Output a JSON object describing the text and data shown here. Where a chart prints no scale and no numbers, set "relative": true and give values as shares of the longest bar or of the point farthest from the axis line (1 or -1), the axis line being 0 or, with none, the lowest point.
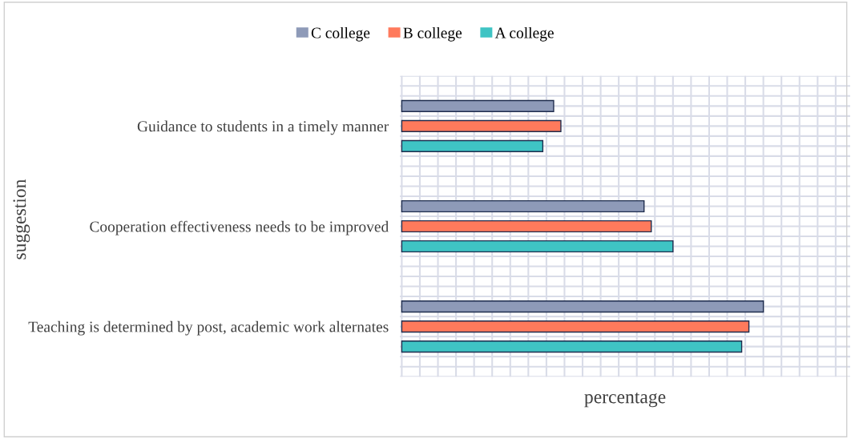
{
  "chart_data": {
    "type": "bar",
    "orientation": "horizontal",
    "relative": true,
    "xlabel": "percentage",
    "ylabel": "suggestion",
    "categories": [
      "Guidance to students in a timely manner",
      "Cooperation effectiveness needs to be improved",
      "Teaching is determined by post, academic work alternates"
    ],
    "series": [
      {
        "name": "C college",
        "color": "#8e9ab8",
        "values": [
          0.42,
          0.67,
          1
        ]
      },
      {
        "name": "B college",
        "color": "#ff7a5c",
        "values": [
          0.44,
          0.69,
          0.96
        ]
      },
      {
        "name": "A college",
        "color": "#3fc4c4",
        "values": [
          0.39,
          0.75,
          0.94
        ]
      }
    ],
    "grid": true,
    "legend": "top",
    "tick_labels": "y"
  }
}
